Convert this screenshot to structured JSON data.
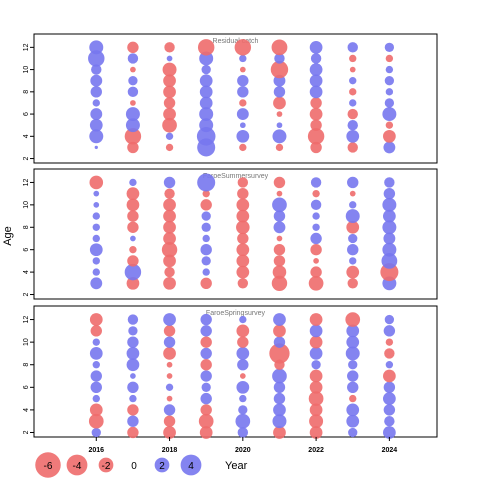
{
  "ylabel": "Age",
  "legend": {
    "items": [
      "-6",
      "-4",
      "-2",
      "0",
      "2",
      "4"
    ],
    "values": [
      -6,
      -4,
      -2,
      0,
      2,
      4
    ],
    "title": "Year"
  },
  "colors": {
    "positive": "#7777ee",
    "negative": "#ee6c6c",
    "frame": "#000000",
    "panel_title": "#777777"
  },
  "chart_data": {
    "type": "scatter",
    "bubble": true,
    "x_ticks": [
      "2016",
      "2018",
      "2020",
      "2022",
      "2024"
    ],
    "xlim": [
      2014.3,
      2025.3
    ],
    "panels": [
      {
        "title": "Residual catch",
        "y_ticks": [
          "2",
          "4",
          "6",
          "8",
          "10",
          "12"
        ],
        "ylim": [
          1.6,
          13.2
        ],
        "years": [
          2016,
          2017,
          2018,
          2019,
          2020,
          2021,
          2022,
          2023,
          2024
        ],
        "ages": [
          3,
          4,
          5,
          6,
          7,
          8,
          9,
          10,
          11,
          12
        ],
        "residuals": [
          [
            0.1,
            -1.2,
            -0.5,
            3.0,
            -0.5,
            -0.5,
            -1.2,
            -1.0,
            1.3
          ],
          [
            1.8,
            -2.5,
            0.5,
            3.2,
            1.5,
            1.8,
            -2.5,
            1.5,
            -1.5
          ],
          [
            1.5,
            1.8,
            -2.0,
            1.8,
            0.3,
            0.3,
            -1.2,
            1.0,
            -0.5
          ],
          [
            1.3,
            1.8,
            -1.5,
            1.8,
            1.3,
            -0.3,
            -1.5,
            -1.0,
            1.8
          ],
          [
            0.5,
            -0.3,
            -1.2,
            1.5,
            -0.5,
            -1.5,
            -1.2,
            0.5,
            0.8
          ],
          [
            1.2,
            1.0,
            -1.5,
            1.5,
            1.2,
            1.2,
            1.5,
            -0.5,
            0.5
          ],
          [
            1.3,
            0.8,
            -1.5,
            1.5,
            1.2,
            1.3,
            1.5,
            0.5,
            0.8
          ],
          [
            1.0,
            -0.3,
            -1.8,
            0.8,
            -0.3,
            -2.8,
            1.5,
            -0.3,
            0.5
          ],
          [
            2.5,
            1.0,
            0.3,
            1.8,
            0.5,
            1.0,
            1.0,
            -0.5,
            -0.5
          ],
          [
            1.8,
            -1.2,
            -1.0,
            -2.5,
            -2.5,
            -2.3,
            1.5,
            1.0,
            0.8
          ]
        ]
      },
      {
        "title": "FaroeSummersurvey",
        "y_ticks": [
          "2",
          "4",
          "6",
          "8",
          "10",
          "12"
        ],
        "ylim": [
          1.6,
          13.2
        ],
        "years": [
          2016,
          2017,
          2018,
          2019,
          2020,
          2021,
          2022,
          2023,
          2024
        ],
        "ages": [
          3,
          4,
          5,
          6,
          7,
          8,
          9,
          10,
          11,
          12
        ],
        "residuals": [
          [
            1.3,
            -1.5,
            -1.5,
            -1.2,
            -1.0,
            -2.2,
            -2.0,
            -1.0,
            1.8
          ],
          [
            0.5,
            2.5,
            -1.0,
            0.5,
            -1.5,
            -1.7,
            -1.2,
            -1.5,
            -3.0
          ],
          [
            0.5,
            -1.2,
            -1.5,
            0.8,
            -1.5,
            -1.2,
            -0.3,
            0.5,
            2.3
          ],
          [
            1.5,
            -0.5,
            -2.2,
            1.2,
            -1.5,
            -1.2,
            -1.2,
            1.2,
            1.8
          ],
          [
            0.5,
            0.3,
            -1.5,
            0.5,
            -1.2,
            -0.3,
            1.2,
            0.8,
            1.3
          ],
          [
            0.5,
            -1.2,
            -1.5,
            0.8,
            -1.7,
            1.3,
            0.5,
            -1.5,
            1.8
          ],
          [
            0.5,
            -1.2,
            -1.5,
            0.8,
            -1.5,
            1.2,
            0.5,
            1.8,
            1.5
          ],
          [
            0.3,
            -1.5,
            -1.5,
            -1.2,
            -1.5,
            2.0,
            1.0,
            0.5,
            1.8
          ],
          [
            0.3,
            -1.5,
            -1.0,
            -0.5,
            -1.2,
            -0.3,
            -0.5,
            -0.3,
            1.2
          ],
          [
            -1.7,
            0.5,
            1.2,
            3.0,
            -1.0,
            -1.2,
            1.0,
            1.2,
            1.0
          ]
        ]
      },
      {
        "title": "FaroeSpringsurvey",
        "y_ticks": [
          "2",
          "4",
          "6",
          "8",
          "10",
          "12"
        ],
        "ylim": [
          1.6,
          13.2
        ],
        "years": [
          2016,
          2017,
          2018,
          2019,
          2020,
          2021,
          2022,
          2023,
          2024
        ],
        "ages": [
          3,
          4,
          5,
          6,
          7,
          8,
          9,
          10,
          11,
          12
        ],
        "residuals": [
          [
            0.8,
            -1.2,
            -1.5,
            -1.5,
            1.0,
            -1.5,
            -1.5,
            0.8,
            1.5
          ],
          [
            -2.0,
            1.2,
            -1.2,
            -2.0,
            2.0,
            1.8,
            -1.8,
            1.5,
            1.0
          ],
          [
            -1.5,
            -1.2,
            1.2,
            -1.2,
            0.8,
            1.5,
            -1.5,
            1.5,
            1.2
          ],
          [
            0.5,
            0.5,
            -0.3,
            1.2,
            0.5,
            1.2,
            -2.0,
            -0.5,
            1.5
          ],
          [
            1.2,
            1.2,
            0.5,
            0.8,
            1.5,
            1.2,
            -1.5,
            1.2,
            1.2
          ],
          [
            1.2,
            0.3,
            -0.3,
            1.2,
            -0.3,
            2.0,
            -1.5,
            1.2,
            -1.5
          ],
          [
            0.5,
            1.5,
            -0.3,
            -1.2,
            1.2,
            -1.0,
            0.8,
            0.8,
            0.5
          ],
          [
            1.5,
            1.5,
            -1.5,
            1.2,
            1.5,
            -3.8,
            1.5,
            1.8,
            -1.0
          ],
          [
            0.5,
            1.2,
            1.2,
            -1.2,
            -1.2,
            1.2,
            -1.5,
            1.5,
            -0.5
          ],
          [
            -1.2,
            0.8,
            -1.2,
            1.2,
            -1.5,
            -1.5,
            1.5,
            1.5,
            1.2
          ],
          [
            -1.5,
            1.0,
            1.5,
            1.2,
            0.5,
            1.5,
            -1.5,
            -2.0,
            0.8
          ]
        ],
        "ages_override": [
          2,
          3,
          4,
          5,
          6,
          7,
          8,
          9,
          10,
          11,
          12
        ]
      }
    ]
  }
}
